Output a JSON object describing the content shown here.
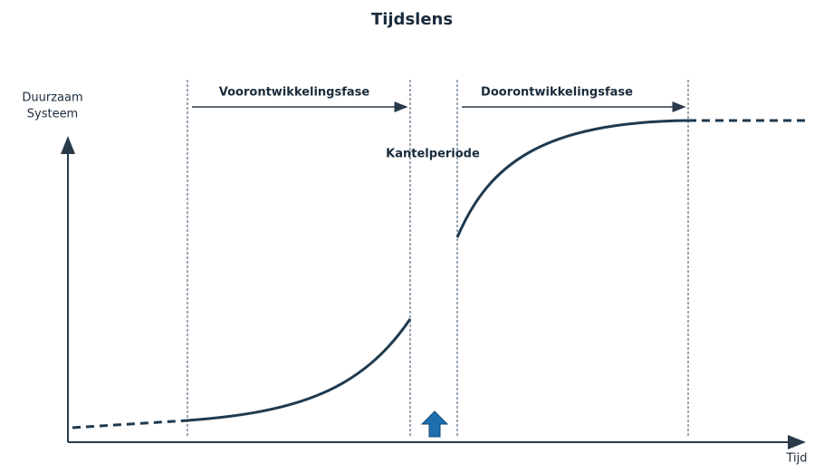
{
  "title": "Tijdslens",
  "y_axis_label": [
    "Duurzaam",
    "Systeem"
  ],
  "x_axis_label": "Tijd",
  "phases": [
    "Voorontwikkelingsfase",
    "Kantelperiode",
    "Doorontwikkelingsfase"
  ]
}
